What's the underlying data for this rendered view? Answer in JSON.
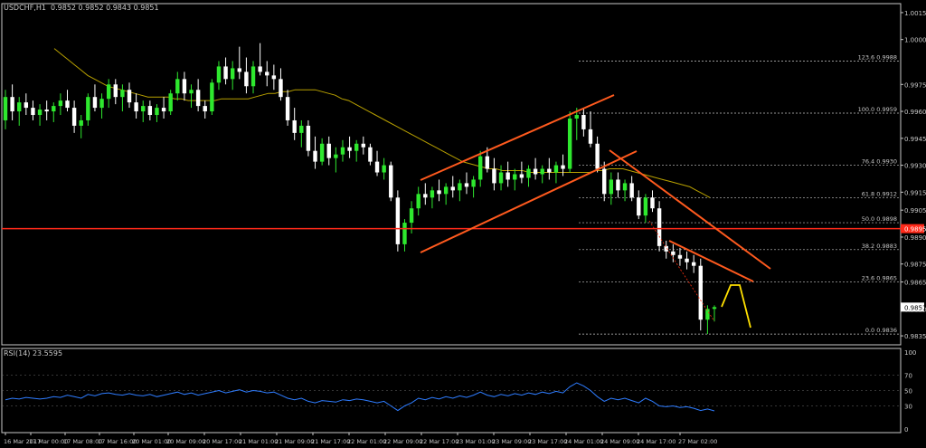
{
  "window": {
    "symbol_label": "USDCHF,H1",
    "ohlc": "0.9852 0.9852 0.9843 0.9851",
    "rsi_label": "RSI(14) 23.5595"
  },
  "colors": {
    "background": "#000000",
    "bull": "#2ee82e",
    "bear": "#ffffff",
    "ma": "#b8a000",
    "channel": "#ff5a1e",
    "hline": "#ff2a1a",
    "projection": "#ffe000",
    "rsi": "#2e7cff",
    "fib": "#c8c8c8",
    "text": "#c8c8c8",
    "sep": "#c8c8c8"
  },
  "price_axis": {
    "ticks": [
      "1.0015",
      "1.0000",
      "0.9975",
      "0.9960",
      "0.9945",
      "0.9930",
      "0.9915",
      "0.9905",
      "0.9890",
      "0.9875",
      "0.9865",
      "0.9850",
      "0.9835"
    ],
    "current_price": "0.9851",
    "hline_price": "0.9895"
  },
  "rsi_axis": {
    "ticks": [
      "100",
      "70",
      "50",
      "30",
      "0"
    ]
  },
  "time_axis": {
    "labels": [
      "16 Mar 2017",
      "17 Mar 00:00",
      "17 Mar 08:00",
      "17 Mar 16:00",
      "20 Mar 01:00",
      "20 Mar 09:00",
      "20 Mar 17:00",
      "21 Mar 01:00",
      "21 Mar 09:00",
      "21 Mar 17:00",
      "22 Mar 01:00",
      "22 Mar 09:00",
      "22 Mar 17:00",
      "23 Mar 01:00",
      "23 Mar 09:00",
      "23 Mar 17:00",
      "24 Mar 01:00",
      "24 Mar 09:00",
      "24 Mar 17:00",
      "27 Mar 02:00"
    ]
  },
  "fib_levels": [
    {
      "label": "123.6 0.9988"
    },
    {
      "label": "100.0 0.9959"
    },
    {
      "label": "76.4 0.9930"
    },
    {
      "label": "61.8 0.9912"
    },
    {
      "label": "50.0 0.9898"
    },
    {
      "label": "38.2 0.9883"
    },
    {
      "label": "23.6 0.9865"
    },
    {
      "label": "0.0 0.9836"
    }
  ],
  "chart_data": {
    "type": "candlestick",
    "symbol": "USDCHF",
    "timeframe": "H1",
    "ylim": [
      0.983,
      1.002
    ],
    "rsi_ylim": [
      0,
      100
    ],
    "rsi_levels": [
      70,
      50,
      30
    ],
    "candles": [
      [
        0.9955,
        0.9972,
        0.995,
        0.9968
      ],
      [
        0.9968,
        0.9975,
        0.9955,
        0.996
      ],
      [
        0.996,
        0.9968,
        0.9952,
        0.9965
      ],
      [
        0.9965,
        0.997,
        0.9958,
        0.9962
      ],
      [
        0.9962,
        0.9966,
        0.9955,
        0.9958
      ],
      [
        0.9958,
        0.9964,
        0.9952,
        0.9961
      ],
      [
        0.9961,
        0.9966,
        0.9955,
        0.996
      ],
      [
        0.996,
        0.9965,
        0.9954,
        0.9963
      ],
      [
        0.9963,
        0.997,
        0.9958,
        0.9966
      ],
      [
        0.9966,
        0.9972,
        0.996,
        0.9962
      ],
      [
        0.9962,
        0.9966,
        0.9948,
        0.9952
      ],
      [
        0.9952,
        0.9958,
        0.9945,
        0.9955
      ],
      [
        0.9955,
        0.997,
        0.9952,
        0.9968
      ],
      [
        0.9968,
        0.9975,
        0.996,
        0.9962
      ],
      [
        0.9962,
        0.997,
        0.9956,
        0.9967
      ],
      [
        0.9967,
        0.9978,
        0.9962,
        0.9975
      ],
      [
        0.9975,
        0.9978,
        0.9964,
        0.9968
      ],
      [
        0.9968,
        0.9975,
        0.996,
        0.9972
      ],
      [
        0.9972,
        0.9976,
        0.9962,
        0.9965
      ],
      [
        0.9965,
        0.997,
        0.9956,
        0.996
      ],
      [
        0.996,
        0.9966,
        0.9954,
        0.9963
      ],
      [
        0.9963,
        0.9966,
        0.9955,
        0.9958
      ],
      [
        0.9958,
        0.9964,
        0.9954,
        0.9962
      ],
      [
        0.9962,
        0.9968,
        0.9956,
        0.996
      ],
      [
        0.996,
        0.9972,
        0.9958,
        0.997
      ],
      [
        0.997,
        0.9982,
        0.9966,
        0.9978
      ],
      [
        0.9978,
        0.9982,
        0.9966,
        0.997
      ],
      [
        0.997,
        0.9975,
        0.9962,
        0.9972
      ],
      [
        0.9972,
        0.9978,
        0.996,
        0.9963
      ],
      [
        0.9963,
        0.9966,
        0.9956,
        0.996
      ],
      [
        0.996,
        0.9978,
        0.9958,
        0.9976
      ],
      [
        0.9976,
        0.9988,
        0.9972,
        0.9985
      ],
      [
        0.9985,
        0.999,
        0.9975,
        0.9978
      ],
      [
        0.9978,
        0.9988,
        0.9972,
        0.9984
      ],
      [
        0.9984,
        0.9996,
        0.9978,
        0.9982
      ],
      [
        0.9982,
        0.999,
        0.997,
        0.9974
      ],
      [
        0.9974,
        0.9988,
        0.997,
        0.9985
      ],
      [
        0.9985,
        0.9998,
        0.998,
        0.9982
      ],
      [
        0.9982,
        0.9988,
        0.9974,
        0.998
      ],
      [
        0.998,
        0.9986,
        0.9972,
        0.9978
      ],
      [
        0.9978,
        0.9984,
        0.9966,
        0.9968
      ],
      [
        0.9968,
        0.9972,
        0.9952,
        0.9955
      ],
      [
        0.9955,
        0.9962,
        0.9944,
        0.9948
      ],
      [
        0.9948,
        0.9955,
        0.994,
        0.9952
      ],
      [
        0.9952,
        0.9955,
        0.9935,
        0.9938
      ],
      [
        0.9938,
        0.9946,
        0.9928,
        0.9932
      ],
      [
        0.9932,
        0.9945,
        0.993,
        0.9942
      ],
      [
        0.9942,
        0.9946,
        0.993,
        0.9934
      ],
      [
        0.9934,
        0.994,
        0.9926,
        0.9936
      ],
      [
        0.9936,
        0.9944,
        0.9932,
        0.994
      ],
      [
        0.994,
        0.9946,
        0.9934,
        0.9938
      ],
      [
        0.9938,
        0.9944,
        0.9932,
        0.9942
      ],
      [
        0.9942,
        0.9946,
        0.9936,
        0.994
      ],
      [
        0.994,
        0.9942,
        0.993,
        0.9932
      ],
      [
        0.9932,
        0.9938,
        0.9924,
        0.9926
      ],
      [
        0.9926,
        0.9934,
        0.9922,
        0.993
      ],
      [
        0.993,
        0.9932,
        0.991,
        0.9912
      ],
      [
        0.9912,
        0.9916,
        0.9882,
        0.9886
      ],
      [
        0.9886,
        0.99,
        0.9882,
        0.9898
      ],
      [
        0.9898,
        0.991,
        0.9892,
        0.9906
      ],
      [
        0.9906,
        0.9918,
        0.9902,
        0.9914
      ],
      [
        0.9914,
        0.992,
        0.9908,
        0.9912
      ],
      [
        0.9912,
        0.9918,
        0.9906,
        0.9916
      ],
      [
        0.9916,
        0.9922,
        0.991,
        0.9914
      ],
      [
        0.9914,
        0.992,
        0.9908,
        0.9918
      ],
      [
        0.9918,
        0.9924,
        0.9912,
        0.9916
      ],
      [
        0.9916,
        0.9922,
        0.991,
        0.992
      ],
      [
        0.992,
        0.9926,
        0.9914,
        0.9918
      ],
      [
        0.9918,
        0.9924,
        0.9912,
        0.9922
      ],
      [
        0.9922,
        0.9938,
        0.9918,
        0.9935
      ],
      [
        0.9935,
        0.994,
        0.9926,
        0.9928
      ],
      [
        0.9928,
        0.9934,
        0.9916,
        0.992
      ],
      [
        0.992,
        0.993,
        0.9916,
        0.9926
      ],
      [
        0.9926,
        0.9932,
        0.9918,
        0.9922
      ],
      [
        0.9922,
        0.9928,
        0.9916,
        0.9925
      ],
      [
        0.9925,
        0.9932,
        0.992,
        0.9923
      ],
      [
        0.9923,
        0.993,
        0.9918,
        0.9928
      ],
      [
        0.9928,
        0.9934,
        0.9922,
        0.9925
      ],
      [
        0.9925,
        0.993,
        0.992,
        0.9928
      ],
      [
        0.9928,
        0.9934,
        0.9922,
        0.9926
      ],
      [
        0.9926,
        0.9932,
        0.992,
        0.993
      ],
      [
        0.993,
        0.9936,
        0.9924,
        0.9928
      ],
      [
        0.9928,
        0.996,
        0.9926,
        0.9956
      ],
      [
        0.9956,
        0.9962,
        0.9944,
        0.9958
      ],
      [
        0.9958,
        0.9962,
        0.9946,
        0.995
      ],
      [
        0.995,
        0.996,
        0.994,
        0.9942
      ],
      [
        0.9942,
        0.9946,
        0.9926,
        0.9928
      ],
      [
        0.9928,
        0.9932,
        0.991,
        0.9914
      ],
      [
        0.9914,
        0.9926,
        0.9908,
        0.9922
      ],
      [
        0.9922,
        0.9926,
        0.9912,
        0.9916
      ],
      [
        0.9916,
        0.9922,
        0.991,
        0.992
      ],
      [
        0.992,
        0.9924,
        0.991,
        0.9912
      ],
      [
        0.9912,
        0.9916,
        0.99,
        0.9902
      ],
      [
        0.9902,
        0.9914,
        0.9898,
        0.9912
      ],
      [
        0.9912,
        0.9916,
        0.9904,
        0.9906
      ],
      [
        0.9906,
        0.991,
        0.9882,
        0.9885
      ],
      [
        0.9885,
        0.9888,
        0.9878,
        0.9882
      ],
      [
        0.9882,
        0.9886,
        0.9876,
        0.988
      ],
      [
        0.988,
        0.9884,
        0.9874,
        0.9878
      ],
      [
        0.9878,
        0.9882,
        0.9872,
        0.9876
      ],
      [
        0.9876,
        0.988,
        0.987,
        0.9874
      ],
      [
        0.9874,
        0.9878,
        0.9838,
        0.9844
      ],
      [
        0.9844,
        0.9852,
        0.9836,
        0.985
      ],
      [
        0.985,
        0.9852,
        0.9843,
        0.9851
      ]
    ],
    "ma": [
      0.9995,
      0.9992,
      0.9989,
      0.9986,
      0.9983,
      0.998,
      0.9978,
      0.9976,
      0.9974,
      0.9973,
      0.9972,
      0.9971,
      0.997,
      0.9969,
      0.9968,
      0.9968,
      0.9968,
      0.9968,
      0.9967,
      0.9967,
      0.9966,
      0.9966,
      0.9966,
      0.9966,
      0.9966,
      0.9967,
      0.9967,
      0.9967,
      0.9967,
      0.9967,
      0.9968,
      0.9969,
      0.997,
      0.997,
      0.9971,
      0.9971,
      0.9972,
      0.9972,
      0.9972,
      0.9972,
      0.9971,
      0.997,
      0.9969,
      0.9967,
      0.9966,
      0.9964,
      0.9962,
      0.996,
      0.9958,
      0.9956,
      0.9954,
      0.9952,
      0.995,
      0.9948,
      0.9946,
      0.9944,
      0.9942,
      0.994,
      0.9938,
      0.9936,
      0.9934,
      0.9932,
      0.9931,
      0.993,
      0.9929,
      0.9928,
      0.9928,
      0.9927,
      0.9927,
      0.9927,
      0.9927,
      0.9926,
      0.9926,
      0.9926,
      0.9926,
      0.9926,
      0.9926,
      0.9926,
      0.9926,
      0.9926,
      0.9926,
      0.9927,
      0.9927,
      0.9928,
      0.9928,
      0.9928,
      0.9927,
      0.9926,
      0.9925,
      0.9924,
      0.9923,
      0.9922,
      0.9921,
      0.992,
      0.9919,
      0.9918,
      0.9916,
      0.9914,
      0.9912
    ],
    "rsi": [
      38,
      40,
      39,
      41,
      40,
      39,
      40,
      42,
      41,
      44,
      42,
      40,
      45,
      43,
      46,
      47,
      45,
      44,
      46,
      44,
      43,
      45,
      42,
      44,
      46,
      48,
      45,
      47,
      44,
      46,
      48,
      50,
      47,
      49,
      51,
      48,
      50,
      49,
      47,
      48,
      44,
      40,
      38,
      40,
      36,
      34,
      37,
      36,
      35,
      38,
      37,
      39,
      38,
      36,
      34,
      36,
      30,
      24,
      30,
      34,
      40,
      38,
      41,
      39,
      42,
      40,
      43,
      41,
      44,
      48,
      44,
      42,
      45,
      43,
      46,
      44,
      47,
      45,
      48,
      46,
      49,
      47,
      55,
      60,
      56,
      50,
      42,
      36,
      40,
      38,
      40,
      37,
      34,
      40,
      36,
      30,
      29,
      30,
      28,
      29,
      27,
      24,
      26,
      23.5595
    ]
  }
}
